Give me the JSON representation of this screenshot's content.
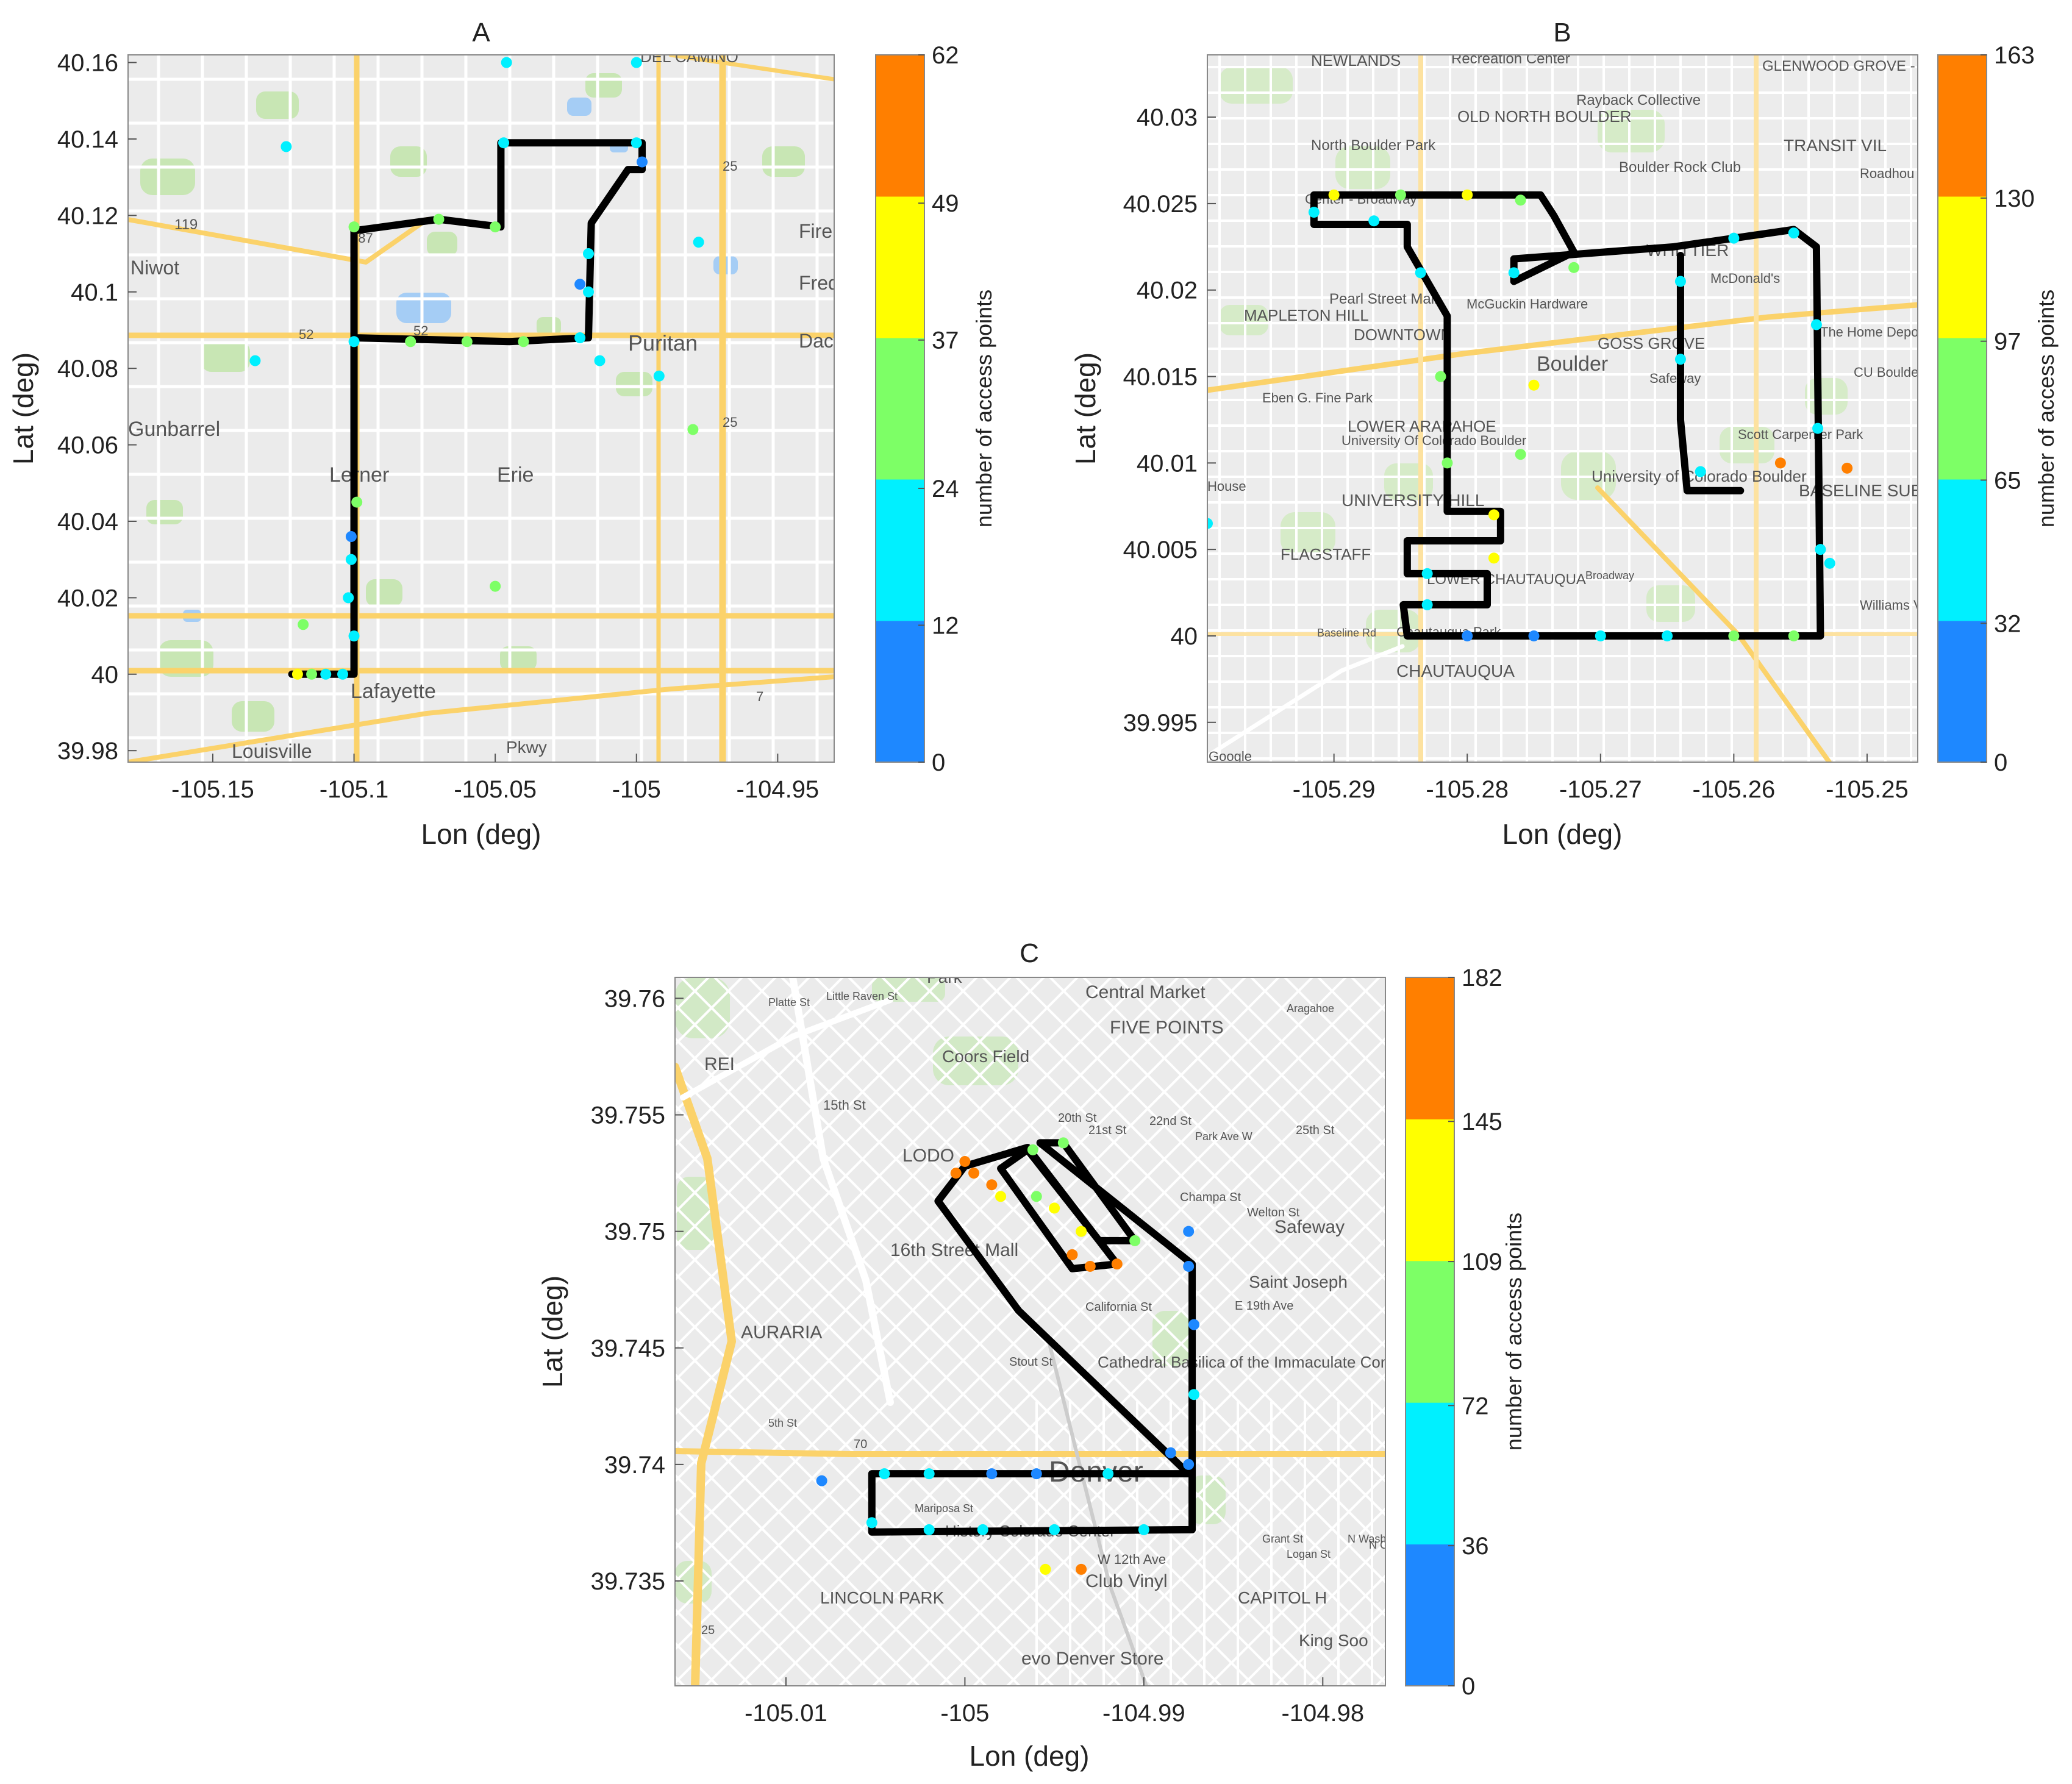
{
  "figure": {
    "panels": [
      {
        "id": "A",
        "title": "A",
        "xlabel": "Lon (deg)",
        "ylabel": "Lat (deg)",
        "colorbar_label": "number of access points",
        "colorbar_ticks": [
          "0",
          "12",
          "24",
          "37",
          "49",
          "62"
        ],
        "x_ticks": [
          "-105.15",
          "-105.1",
          "-105.05",
          "-105",
          "-104.95"
        ],
        "y_ticks": [
          "39.98",
          "40",
          "40.02",
          "40.04",
          "40.06",
          "40.08",
          "40.1",
          "40.12",
          "40.14",
          "40.16"
        ],
        "map_labels": [
          "DEL CAMINO",
          "Niwot",
          "Fire",
          "Fred",
          "Dac",
          "Puritan",
          "Gunbarrel",
          "Lerner",
          "Erie",
          "Lafayette",
          "Louisville",
          "119",
          "287",
          "52",
          "52",
          "25",
          "25",
          "7",
          "Pkwy"
        ]
      },
      {
        "id": "B",
        "title": "B",
        "xlabel": "Lon (deg)",
        "ylabel": "Lat (deg)",
        "colorbar_label": "number of access points",
        "colorbar_ticks": [
          "0",
          "32",
          "65",
          "97",
          "130",
          "163"
        ],
        "x_ticks": [
          "-105.29",
          "-105.28",
          "-105.27",
          "-105.26",
          "-105.25"
        ],
        "y_ticks": [
          "39.995",
          "40",
          "40.005",
          "40.01",
          "40.015",
          "40.02",
          "40.025",
          "40.03"
        ],
        "map_labels": [
          "NEWLANDS",
          "Recreation Center",
          "GLENWOOD GROVE - NORTH IRIS",
          "OLD NORTH BOULDER",
          "Rayback Collective",
          "TRANSIT VIL",
          "North Boulder Park",
          "Boulder Rock Club",
          "Roadhou Boulder",
          "Center - Broadway",
          "WHITTIER",
          "McDonald's",
          "Pearl Street Mall",
          "McGuckin Hardware",
          "MAPLETON HILL",
          "DOWNTOWN",
          "GOSS GROVE",
          "The Home Depot",
          "Boulder",
          "Safeway",
          "CU Boulder East Campus",
          "Eben G. Fine Park",
          "LOWER ARAPAHOE",
          "University Of Colorado Boulder",
          "Scott Carpenter Park",
          "University of Colorado Boulder",
          "House",
          "UNIVERSITY HILL",
          "BASELINE SUB",
          "FLAGSTAFF",
          "LOWER CHAUTAUQUA",
          "Williams Villag",
          "Chautauqua Park",
          "CHAUTAUQUA",
          "Baseline Rd",
          "Broadway",
          "Google"
        ]
      },
      {
        "id": "C",
        "title": "C",
        "xlabel": "Lon (deg)",
        "ylabel": "Lat (deg)",
        "colorbar_label": "number of access points",
        "colorbar_ticks": [
          "0",
          "36",
          "72",
          "109",
          "145",
          "182"
        ],
        "x_ticks": [
          "-105.01",
          "-105",
          "-104.99",
          "-104.98"
        ],
        "y_ticks": [
          "39.735",
          "39.74",
          "39.745",
          "39.75",
          "39.755",
          "39.76"
        ],
        "map_labels": [
          "Park",
          "Central Market",
          "FIVE POINTS",
          "REI",
          "Coors Field",
          "15th St",
          "LODO",
          "16th Street Mall",
          "Safeway",
          "Saint Joseph",
          "E 19th Ave",
          "AURARIA",
          "Cathedral Basilica of the Immaculate Conception",
          "Denver",
          "History Colorado Center",
          "W 12th Ave",
          "Club Vinyl",
          "LINCOLN PARK",
          "CAPITOL H",
          "King Soo",
          "evo Denver Store",
          "20th St",
          "21st St",
          "22nd St",
          "25th St",
          "Champa St",
          "Welton St",
          "California St",
          "Stout St",
          "5th St",
          "Grant St",
          "Logan St",
          "N Washington St",
          "N Clarkson St",
          "Platte St",
          "Little Raven St",
          "Park Ave W",
          "Aragahoe",
          "Mariposa St",
          "70",
          "25"
        ]
      }
    ],
    "colormap": [
      "#1e88ff",
      "#00f0ff",
      "#7dff66",
      "#ffff00",
      "#ff7f00"
    ],
    "route_color": "#000000",
    "map_colors": {
      "background": "#ebebeb",
      "road_major": "#fbd26a",
      "road_minor": "#ffffff",
      "green": "#c8e6b4",
      "water": "#a5cdf5"
    }
  },
  "chart_data": [
    {
      "type": "scatter",
      "title": "A",
      "xlabel": "Lon (deg)",
      "ylabel": "Lat (deg)",
      "xlim": [
        -105.18,
        -104.93
      ],
      "ylim": [
        39.977,
        40.162
      ],
      "colorbar": {
        "label": "number of access points",
        "range": [
          0,
          62
        ],
        "ticks": [
          0,
          12,
          24,
          37,
          49,
          62
        ]
      },
      "route": [
        [
          -105.122,
          40.0
        ],
        [
          -105.1,
          40.0
        ],
        [
          -105.1,
          40.088
        ],
        [
          -105.1,
          40.116
        ],
        [
          -105.07,
          40.119
        ],
        [
          -105.048,
          40.117
        ],
        [
          -105.048,
          40.139
        ],
        [
          -104.998,
          40.139
        ],
        [
          -104.998,
          40.132
        ],
        [
          -105.003,
          40.132
        ],
        [
          -105.016,
          40.118
        ],
        [
          -105.017,
          40.088
        ],
        [
          -105.045,
          40.087
        ],
        [
          -105.1,
          40.088
        ]
      ],
      "points": [
        {
          "x": -105.12,
          "y": 40.0,
          "v": 45
        },
        {
          "x": -105.115,
          "y": 40.0,
          "v": 30
        },
        {
          "x": -105.11,
          "y": 40.0,
          "v": 20
        },
        {
          "x": -105.104,
          "y": 40.0,
          "v": 15
        },
        {
          "x": -105.1,
          "y": 40.01,
          "v": 18
        },
        {
          "x": -105.102,
          "y": 40.02,
          "v": 14
        },
        {
          "x": -105.101,
          "y": 40.03,
          "v": 22
        },
        {
          "x": -105.101,
          "y": 40.036,
          "v": 8
        },
        {
          "x": -105.099,
          "y": 40.045,
          "v": 28
        },
        {
          "x": -105.1,
          "y": 40.087,
          "v": 20
        },
        {
          "x": -105.08,
          "y": 40.087,
          "v": 33
        },
        {
          "x": -105.06,
          "y": 40.087,
          "v": 30
        },
        {
          "x": -105.04,
          "y": 40.087,
          "v": 25
        },
        {
          "x": -105.02,
          "y": 40.088,
          "v": 14
        },
        {
          "x": -105.017,
          "y": 40.1,
          "v": 15
        },
        {
          "x": -105.017,
          "y": 40.11,
          "v": 18
        },
        {
          "x": -105.02,
          "y": 40.102,
          "v": 6
        },
        {
          "x": -105.1,
          "y": 40.117,
          "v": 26
        },
        {
          "x": -105.07,
          "y": 40.119,
          "v": 30
        },
        {
          "x": -105.05,
          "y": 40.117,
          "v": 28
        },
        {
          "x": -105.047,
          "y": 40.139,
          "v": 22
        },
        {
          "x": -105.0,
          "y": 40.139,
          "v": 20
        },
        {
          "x": -104.998,
          "y": 40.134,
          "v": 5
        },
        {
          "x": -105.0,
          "y": 40.16,
          "v": 16
        },
        {
          "x": -105.046,
          "y": 40.16,
          "v": 18
        },
        {
          "x": -105.124,
          "y": 40.138,
          "v": 18
        },
        {
          "x": -105.135,
          "y": 40.082,
          "v": 18
        },
        {
          "x": -104.992,
          "y": 40.078,
          "v": 16
        },
        {
          "x": -104.98,
          "y": 40.064,
          "v": 28
        },
        {
          "x": -104.978,
          "y": 40.113,
          "v": 18
        },
        {
          "x": -105.05,
          "y": 40.023,
          "v": 28
        },
        {
          "x": -105.013,
          "y": 40.082,
          "v": 18
        },
        {
          "x": -105.118,
          "y": 40.013,
          "v": 26
        }
      ]
    },
    {
      "type": "scatter",
      "title": "B",
      "xlabel": "Lon (deg)",
      "ylabel": "Lat (deg)",
      "xlim": [
        -105.2995,
        -105.2462
      ],
      "ylim": [
        39.9927,
        40.0336
      ],
      "colorbar": {
        "label": "number of access points",
        "range": [
          0,
          163
        ],
        "ticks": [
          0,
          32,
          65,
          97,
          130,
          163
        ]
      },
      "route": [
        [
          -105.2915,
          40.0255
        ],
        [
          -105.2745,
          40.0255
        ],
        [
          -105.2735,
          40.0243
        ],
        [
          -105.272,
          40.0222
        ],
        [
          -105.2765,
          40.0205
        ],
        [
          -105.2765,
          40.0218
        ],
        [
          -105.2645,
          40.0225
        ],
        [
          -105.2555,
          40.0235
        ],
        [
          -105.2538,
          40.0225
        ],
        [
          -105.2535,
          40.0
        ],
        [
          -105.2845,
          40.0
        ],
        [
          -105.2848,
          40.0018
        ],
        [
          -105.2785,
          40.0018
        ],
        [
          -105.2785,
          40.0036
        ],
        [
          -105.2845,
          40.0036
        ],
        [
          -105.2845,
          40.0055
        ],
        [
          -105.2775,
          40.0055
        ],
        [
          -105.2775,
          40.0072
        ],
        [
          -105.2815,
          40.0072
        ],
        [
          -105.2815,
          40.0185
        ],
        [
          -105.2845,
          40.0225
        ],
        [
          -105.2845,
          40.0238
        ],
        [
          -105.2915,
          40.0238
        ],
        [
          -105.2915,
          40.0255
        ]
      ],
      "route2": [
        [
          -105.2595,
          40.0084
        ],
        [
          -105.2635,
          40.0084
        ],
        [
          -105.264,
          40.0125
        ],
        [
          -105.264,
          40.022
        ]
      ],
      "points": [
        {
          "x": -105.29,
          "y": 40.0255,
          "v": 110
        },
        {
          "x": -105.285,
          "y": 40.0255,
          "v": 80
        },
        {
          "x": -105.28,
          "y": 40.0255,
          "v": 100
        },
        {
          "x": -105.276,
          "y": 40.0252,
          "v": 70
        },
        {
          "x": -105.2915,
          "y": 40.0245,
          "v": 60
        },
        {
          "x": -105.287,
          "y": 40.024,
          "v": 55
        },
        {
          "x": -105.2835,
          "y": 40.021,
          "v": 50
        },
        {
          "x": -105.282,
          "y": 40.015,
          "v": 70
        },
        {
          "x": -105.2815,
          "y": 40.01,
          "v": 75
        },
        {
          "x": -105.278,
          "y": 40.007,
          "v": 110
        },
        {
          "x": -105.278,
          "y": 40.0045,
          "v": 120
        },
        {
          "x": -105.283,
          "y": 40.0036,
          "v": 60
        },
        {
          "x": -105.283,
          "y": 40.0018,
          "v": 55
        },
        {
          "x": -105.28,
          "y": 40.0,
          "v": 20
        },
        {
          "x": -105.275,
          "y": 40.0,
          "v": 30
        },
        {
          "x": -105.27,
          "y": 40.0,
          "v": 45
        },
        {
          "x": -105.265,
          "y": 40.0,
          "v": 60
        },
        {
          "x": -105.26,
          "y": 40.0,
          "v": 70
        },
        {
          "x": -105.2555,
          "y": 40.0,
          "v": 80
        },
        {
          "x": -105.2535,
          "y": 40.005,
          "v": 60
        },
        {
          "x": -105.2537,
          "y": 40.012,
          "v": 45
        },
        {
          "x": -105.2538,
          "y": 40.018,
          "v": 40
        },
        {
          "x": -105.2555,
          "y": 40.0233,
          "v": 40
        },
        {
          "x": -105.26,
          "y": 40.023,
          "v": 55
        },
        {
          "x": -105.264,
          "y": 40.0205,
          "v": 45
        },
        {
          "x": -105.264,
          "y": 40.016,
          "v": 60
        },
        {
          "x": -105.2625,
          "y": 40.0095,
          "v": 55
        },
        {
          "x": -105.272,
          "y": 40.0213,
          "v": 70
        },
        {
          "x": -105.2765,
          "y": 40.021,
          "v": 50
        },
        {
          "x": -105.2565,
          "y": 40.01,
          "v": 150
        },
        {
          "x": -105.2515,
          "y": 40.0097,
          "v": 150
        },
        {
          "x": -105.2528,
          "y": 40.0042,
          "v": 40
        },
        {
          "x": -105.275,
          "y": 40.0145,
          "v": 110
        },
        {
          "x": -105.276,
          "y": 40.0105,
          "v": 80
        },
        {
          "x": -105.2995,
          "y": 40.0065,
          "v": 50
        }
      ]
    },
    {
      "type": "scatter",
      "title": "C",
      "xlabel": "Lon (deg)",
      "ylabel": "Lat (deg)",
      "xlim": [
        -105.0162,
        -104.9765
      ],
      "ylim": [
        39.7305,
        39.7609
      ],
      "colorbar": {
        "label": "number of access points",
        "range": [
          0,
          182
        ],
        "ticks": [
          0,
          36,
          72,
          109,
          145,
          182
        ]
      },
      "route": [
        [
          -105.0052,
          39.7371
        ],
        [
          -104.9873,
          39.7372
        ],
        [
          -104.9873,
          39.7486
        ],
        [
          -104.9958,
          39.7538
        ],
        [
          -104.9945,
          39.7538
        ],
        [
          -104.9905,
          39.7496
        ],
        [
          -104.9925,
          39.7496
        ],
        [
          -104.9965,
          39.7535
        ],
        [
          -104.998,
          39.7527
        ],
        [
          -104.994,
          39.7484
        ],
        [
          -104.9915,
          39.7486
        ],
        [
          -104.9965,
          39.7536
        ],
        [
          -105.0,
          39.7528
        ],
        [
          -105.0015,
          39.7513
        ],
        [
          -104.997,
          39.7466
        ],
        [
          -104.9875,
          39.7396
        ],
        [
          -105.0052,
          39.7396
        ],
        [
          -105.0052,
          39.7371
        ]
      ],
      "points": [
        {
          "x": -105.0,
          "y": 39.753,
          "v": 170
        },
        {
          "x": -104.9985,
          "y": 39.752,
          "v": 175
        },
        {
          "x": -104.9995,
          "y": 39.7525,
          "v": 160
        },
        {
          "x": -105.0005,
          "y": 39.7525,
          "v": 150
        },
        {
          "x": -104.998,
          "y": 39.7515,
          "v": 140
        },
        {
          "x": -104.996,
          "y": 39.7515,
          "v": 90
        },
        {
          "x": -104.994,
          "y": 39.749,
          "v": 170
        },
        {
          "x": -104.993,
          "y": 39.7485,
          "v": 160
        },
        {
          "x": -104.9915,
          "y": 39.7486,
          "v": 175
        },
        {
          "x": -104.9935,
          "y": 39.75,
          "v": 130
        },
        {
          "x": -104.995,
          "y": 39.751,
          "v": 110
        },
        {
          "x": -104.9905,
          "y": 39.7496,
          "v": 100
        },
        {
          "x": -104.9875,
          "y": 39.7485,
          "v": 30
        },
        {
          "x": -104.9872,
          "y": 39.746,
          "v": 20
        },
        {
          "x": -104.9872,
          "y": 39.743,
          "v": 60
        },
        {
          "x": -104.9875,
          "y": 39.74,
          "v": 20
        },
        {
          "x": -104.9885,
          "y": 39.7405,
          "v": 10
        },
        {
          "x": -104.99,
          "y": 39.7372,
          "v": 60
        },
        {
          "x": -104.995,
          "y": 39.7372,
          "v": 60
        },
        {
          "x": -104.999,
          "y": 39.7372,
          "v": 70
        },
        {
          "x": -105.002,
          "y": 39.7372,
          "v": 50
        },
        {
          "x": -105.0052,
          "y": 39.7375,
          "v": 60
        },
        {
          "x": -105.0045,
          "y": 39.7396,
          "v": 40
        },
        {
          "x": -105.002,
          "y": 39.7396,
          "v": 50
        },
        {
          "x": -104.9985,
          "y": 39.7396,
          "v": 20
        },
        {
          "x": -104.996,
          "y": 39.7396,
          "v": 25
        },
        {
          "x": -104.992,
          "y": 39.7396,
          "v": 60
        },
        {
          "x": -105.008,
          "y": 39.7393,
          "v": 15
        },
        {
          "x": -104.9955,
          "y": 39.7355,
          "v": 120
        },
        {
          "x": -104.9935,
          "y": 39.7355,
          "v": 170
        },
        {
          "x": -104.9875,
          "y": 39.75,
          "v": 10
        },
        {
          "x": -104.9962,
          "y": 39.7535,
          "v": 80
        },
        {
          "x": -104.9945,
          "y": 39.7538,
          "v": 90
        }
      ]
    }
  ]
}
